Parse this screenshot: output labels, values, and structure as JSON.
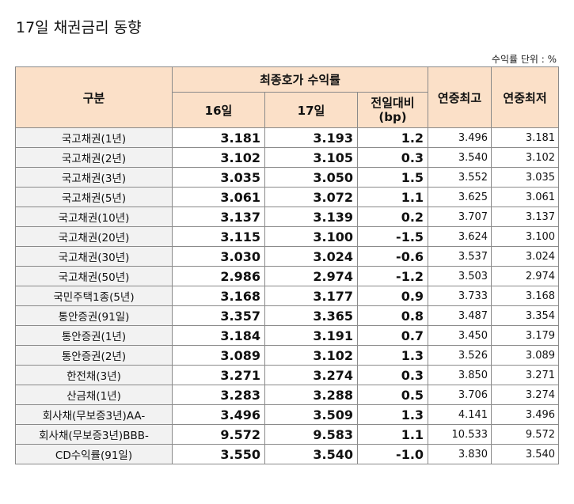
{
  "title": "17일 채권금리 동향",
  "unit": "수익률 단위 : %",
  "headers": {
    "category": "구분",
    "group": "최종호가 수익률",
    "day16": "16일",
    "day17": "17일",
    "change_line1": "전일대비",
    "change_line2": "(bp)",
    "year_high": "연중최고",
    "year_low": "연중최저"
  },
  "rows": [
    {
      "name": "국고채권(1년)",
      "d16": "3.181",
      "d17": "3.193",
      "chg": "1.2",
      "high": "3.496",
      "low": "3.181"
    },
    {
      "name": "국고채권(2년)",
      "d16": "3.102",
      "d17": "3.105",
      "chg": "0.3",
      "high": "3.540",
      "low": "3.102"
    },
    {
      "name": "국고채권(3년)",
      "d16": "3.035",
      "d17": "3.050",
      "chg": "1.5",
      "high": "3.552",
      "low": "3.035"
    },
    {
      "name": "국고채권(5년)",
      "d16": "3.061",
      "d17": "3.072",
      "chg": "1.1",
      "high": "3.625",
      "low": "3.061"
    },
    {
      "name": "국고채권(10년)",
      "d16": "3.137",
      "d17": "3.139",
      "chg": "0.2",
      "high": "3.707",
      "low": "3.137"
    },
    {
      "name": "국고채권(20년)",
      "d16": "3.115",
      "d17": "3.100",
      "chg": "-1.5",
      "high": "3.624",
      "low": "3.100"
    },
    {
      "name": "국고채권(30년)",
      "d16": "3.030",
      "d17": "3.024",
      "chg": "-0.6",
      "high": "3.537",
      "low": "3.024"
    },
    {
      "name": "국고채권(50년)",
      "d16": "2.986",
      "d17": "2.974",
      "chg": "-1.2",
      "high": "3.503",
      "low": "2.974"
    },
    {
      "name": "국민주택1종(5년)",
      "d16": "3.168",
      "d17": "3.177",
      "chg": "0.9",
      "high": "3.733",
      "low": "3.168"
    },
    {
      "name": "통안증권(91일)",
      "d16": "3.357",
      "d17": "3.365",
      "chg": "0.8",
      "high": "3.487",
      "low": "3.354"
    },
    {
      "name": "통안증권(1년)",
      "d16": "3.184",
      "d17": "3.191",
      "chg": "0.7",
      "high": "3.450",
      "low": "3.179"
    },
    {
      "name": "통안증권(2년)",
      "d16": "3.089",
      "d17": "3.102",
      "chg": "1.3",
      "high": "3.526",
      "low": "3.089"
    },
    {
      "name": "한전채(3년)",
      "d16": "3.271",
      "d17": "3.274",
      "chg": "0.3",
      "high": "3.850",
      "low": "3.271"
    },
    {
      "name": "산금채(1년)",
      "d16": "3.283",
      "d17": "3.288",
      "chg": "0.5",
      "high": "3.706",
      "low": "3.274"
    },
    {
      "name": "회사채(무보증3년)AA-",
      "d16": "3.496",
      "d17": "3.509",
      "chg": "1.3",
      "high": "4.141",
      "low": "3.496"
    },
    {
      "name": "회사채(무보증3년)BBB-",
      "d16": "9.572",
      "d17": "9.583",
      "chg": "1.1",
      "high": "10.533",
      "low": "9.572"
    },
    {
      "name": "CD수익률(91일)",
      "d16": "3.550",
      "d17": "3.540",
      "chg": "-1.0",
      "high": "3.830",
      "low": "3.540"
    }
  ]
}
